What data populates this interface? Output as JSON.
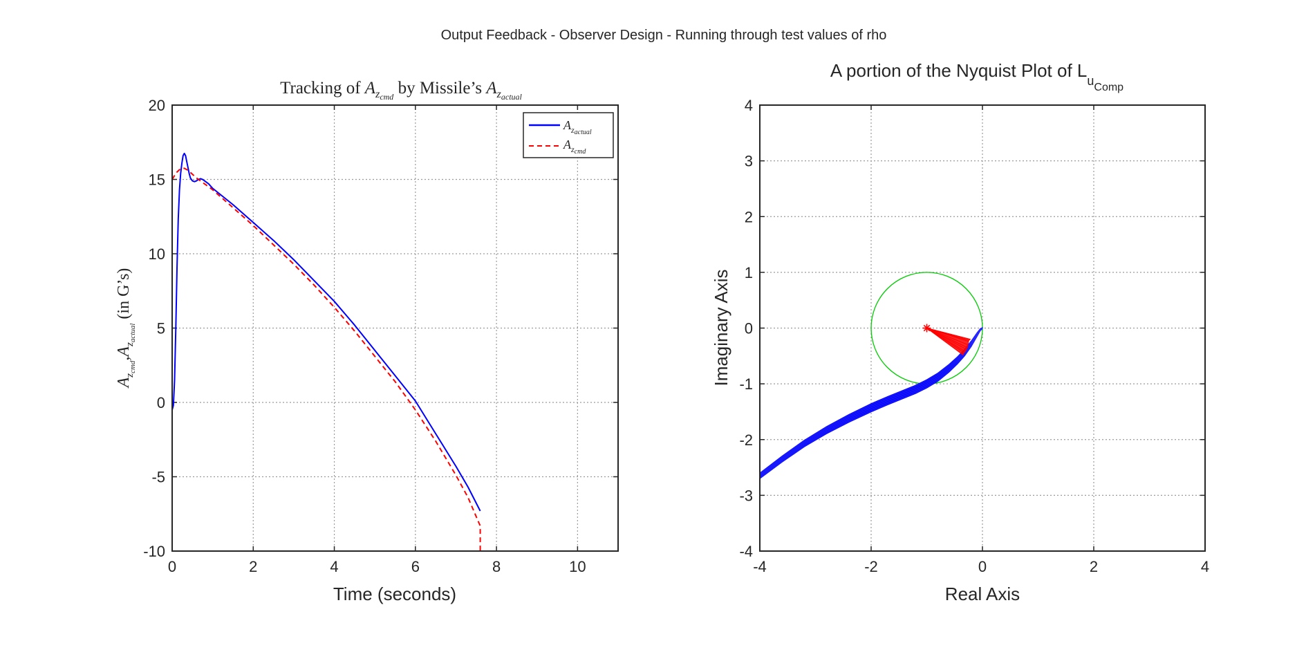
{
  "figure": {
    "suptitle": "Output Feedback - Observer Design - Running through test values of rho"
  },
  "chart_data": [
    {
      "type": "line",
      "title_parts": [
        "Tracking of ",
        "A",
        "z",
        "cmd",
        " by Missile’s ",
        "A",
        "z",
        "actual"
      ],
      "xlabel": "Time (seconds)",
      "ylabel_parts": [
        "A",
        "z",
        "cmd",
        ",",
        "A",
        "z",
        "actual",
        " (in G’s)"
      ],
      "xlim": [
        0,
        11
      ],
      "ylim": [
        -10,
        20
      ],
      "xticks": [
        0,
        2,
        4,
        6,
        8,
        10
      ],
      "yticks": [
        -10,
        -5,
        0,
        5,
        10,
        15,
        20
      ],
      "grid": true,
      "legend_position": "top-right",
      "series": [
        {
          "name_parts": [
            "A",
            "z",
            "actual"
          ],
          "color": "#0000ff",
          "style": "solid",
          "x": [
            0,
            0.03,
            0.06,
            0.09,
            0.12,
            0.15,
            0.18,
            0.21,
            0.24,
            0.27,
            0.3,
            0.33,
            0.36,
            0.39,
            0.42,
            0.45,
            0.5,
            0.55,
            0.6,
            0.65,
            0.7,
            0.75,
            0.8,
            0.9,
            1.0,
            1.5,
            2.0,
            2.5,
            3.0,
            3.5,
            4.0,
            4.5,
            5.0,
            5.5,
            6.0,
            6.5,
            7.0,
            7.3,
            7.6
          ],
          "y": [
            -0.5,
            -0.2,
            1.5,
            5.0,
            9.0,
            12.3,
            14.3,
            15.4,
            16.1,
            16.6,
            16.75,
            16.6,
            16.2,
            15.8,
            15.4,
            15.1,
            14.9,
            14.85,
            14.9,
            15.0,
            15.05,
            15.0,
            14.9,
            14.7,
            14.4,
            13.3,
            12.1,
            10.9,
            9.6,
            8.2,
            6.8,
            5.2,
            3.5,
            1.8,
            0.1,
            -2.1,
            -4.3,
            -5.7,
            -7.3
          ]
        },
        {
          "name_parts": [
            "A",
            "z",
            "cmd"
          ],
          "color": "#ff0000",
          "style": "dashed",
          "x": [
            0,
            0.1,
            0.2,
            0.3,
            0.4,
            0.5,
            0.6,
            0.7,
            0.8,
            1.0,
            1.5,
            2.0,
            2.5,
            3.0,
            3.5,
            4.0,
            4.5,
            5.0,
            5.5,
            6.0,
            6.5,
            7.0,
            7.3,
            7.55,
            7.6,
            7.6
          ],
          "y": [
            15.0,
            15.45,
            15.7,
            15.75,
            15.6,
            15.35,
            15.1,
            14.9,
            14.7,
            14.3,
            13.1,
            11.9,
            10.6,
            9.3,
            7.9,
            6.4,
            4.8,
            3.1,
            1.4,
            -0.5,
            -2.6,
            -4.9,
            -6.4,
            -8.0,
            -8.3,
            -10
          ]
        }
      ]
    },
    {
      "type": "scatter",
      "title": "A portion of the Nyquist Plot of L",
      "title_sub1": "u",
      "title_sub2": "Comp",
      "xlabel": "Real Axis",
      "ylabel": "Imaginary Axis",
      "xlim": [
        -4,
        4
      ],
      "ylim": [
        -4,
        4
      ],
      "xticks": [
        -4,
        -2,
        0,
        2,
        4
      ],
      "yticks": [
        -4,
        -3,
        -2,
        -1,
        0,
        1,
        2,
        3,
        4
      ],
      "grid": true,
      "critical_point": [
        -1,
        0
      ],
      "unit_circle": {
        "center": [
          -1,
          0
        ],
        "radius": 1,
        "color": "#00cc00"
      },
      "nyquist_band": {
        "color": "#0000ff",
        "centerline_x": [
          -4,
          -3.6,
          -3.2,
          -2.8,
          -2.4,
          -2.0,
          -1.7,
          -1.4,
          -1.2,
          -1.0,
          -0.8,
          -0.6,
          -0.45,
          -0.32,
          -0.2,
          -0.1,
          -0.04,
          0.0
        ],
        "centerline_y": [
          -2.65,
          -2.35,
          -2.07,
          -1.83,
          -1.62,
          -1.43,
          -1.3,
          -1.18,
          -1.1,
          -1.0,
          -0.88,
          -0.72,
          -0.58,
          -0.44,
          -0.28,
          -0.12,
          -0.03,
          0.0
        ],
        "width_y": [
          0.1,
          0.11,
          0.12,
          0.13,
          0.14,
          0.15,
          0.15,
          0.15,
          0.15,
          0.15,
          0.15,
          0.14,
          0.13,
          0.12,
          0.1,
          0.07,
          0.04,
          0.02
        ]
      },
      "crossover_fan": {
        "color": "#ff0000",
        "x": [
          -0.35,
          -0.33,
          -0.31,
          -0.29,
          -0.27,
          -0.26,
          -0.25,
          -0.24,
          -0.22
        ],
        "y": [
          -0.48,
          -0.44,
          -0.42,
          -0.38,
          -0.35,
          -0.3,
          -0.24,
          -0.22,
          -0.2
        ]
      }
    }
  ]
}
